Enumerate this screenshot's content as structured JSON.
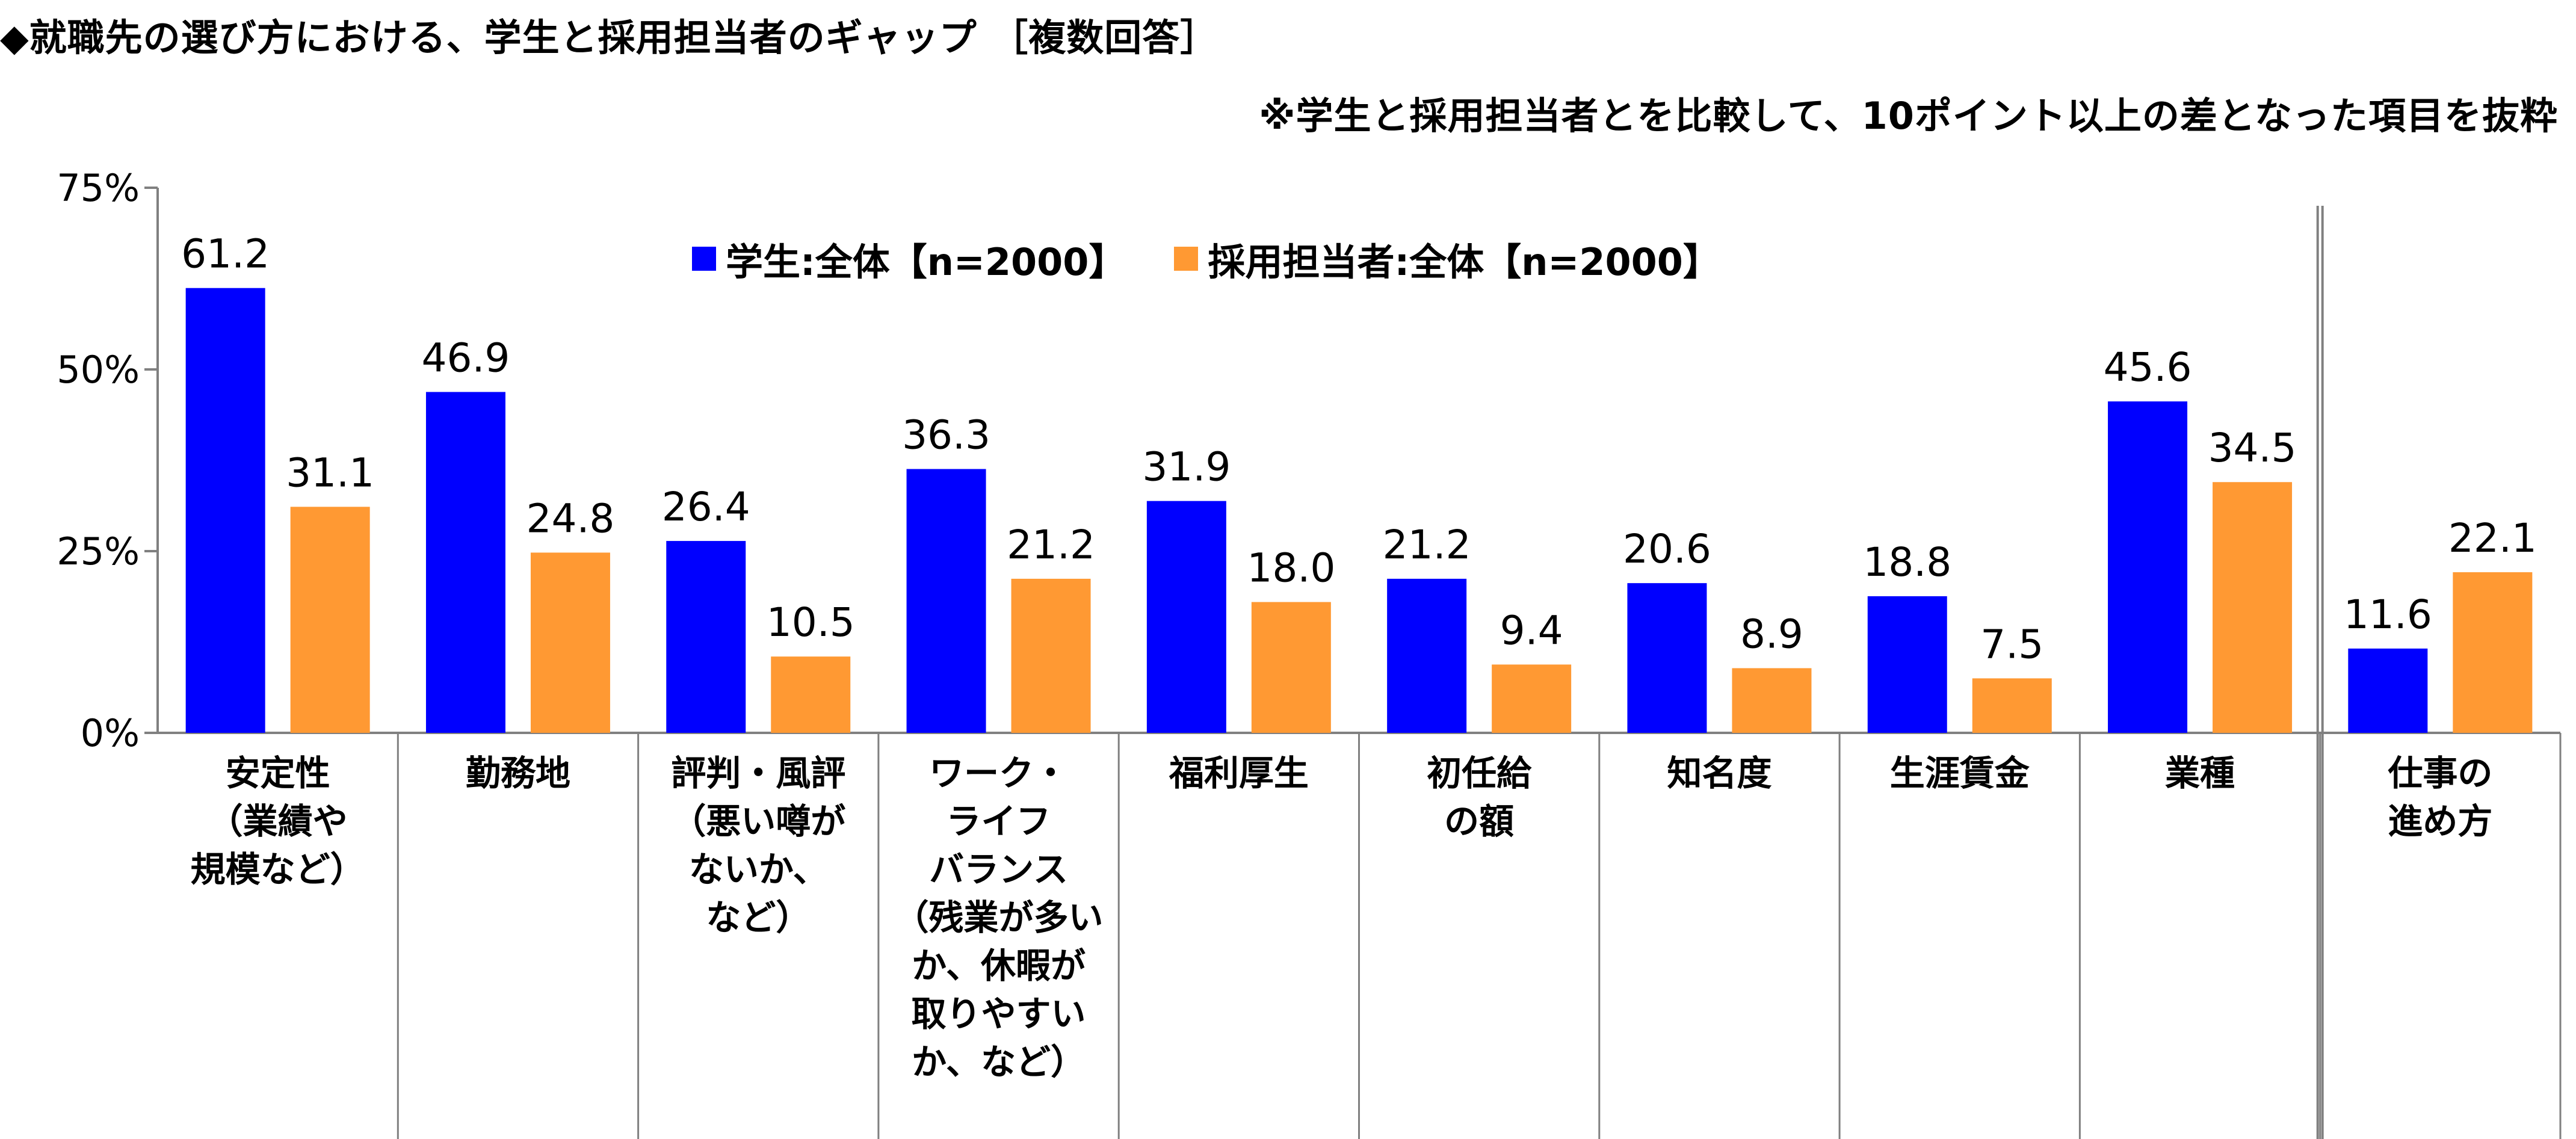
{
  "title": "◆就職先の選び方における、学生と採用担当者のギャップ ［複数回答］",
  "subtitle": "※学生と採用担当者とを比較して、10ポイント以上の差となった項目を抜粋",
  "colors": {
    "students": "#0000ff",
    "recruiters": "#ff9933",
    "axis": "#808080"
  },
  "chart_data": {
    "type": "bar",
    "categories": [
      "安定性\n（業績や\n規模など）",
      "勤務地",
      "評判・風評\n（悪い噂が\nないか、\nなど）",
      "ワーク・\nライフ\nバランス\n（残業が多い\nか、休暇が\n取りやすい\nか、など）",
      "福利厚生",
      "初任給\nの額",
      "知名度",
      "生涯賃金",
      "業種",
      "仕事の\n進め方"
    ],
    "series": [
      {
        "name": "学生:全体【n=2000】",
        "values": [
          61.2,
          46.9,
          26.4,
          36.3,
          31.9,
          21.2,
          20.6,
          18.8,
          45.6,
          11.6
        ]
      },
      {
        "name": "採用担当者:全体【n=2000】",
        "values": [
          31.1,
          24.8,
          10.5,
          21.2,
          18.0,
          9.4,
          8.9,
          7.5,
          34.5,
          22.1
        ]
      }
    ],
    "value_labels": [
      [
        "61.2",
        "46.9",
        "26.4",
        "36.3",
        "31.9",
        "21.2",
        "20.6",
        "18.8",
        "45.6",
        "11.6"
      ],
      [
        "31.1",
        "24.8",
        "10.5",
        "21.2",
        "18.0",
        "9.4",
        "8.9",
        "7.5",
        "34.5",
        "22.1"
      ]
    ],
    "y_ticks": [
      0,
      25,
      50,
      75
    ],
    "y_tick_labels": [
      "0%",
      "25%",
      "50%",
      "75%"
    ],
    "ylim": [
      0,
      75
    ],
    "separator_before_last": true,
    "legend_position": "top-center"
  }
}
